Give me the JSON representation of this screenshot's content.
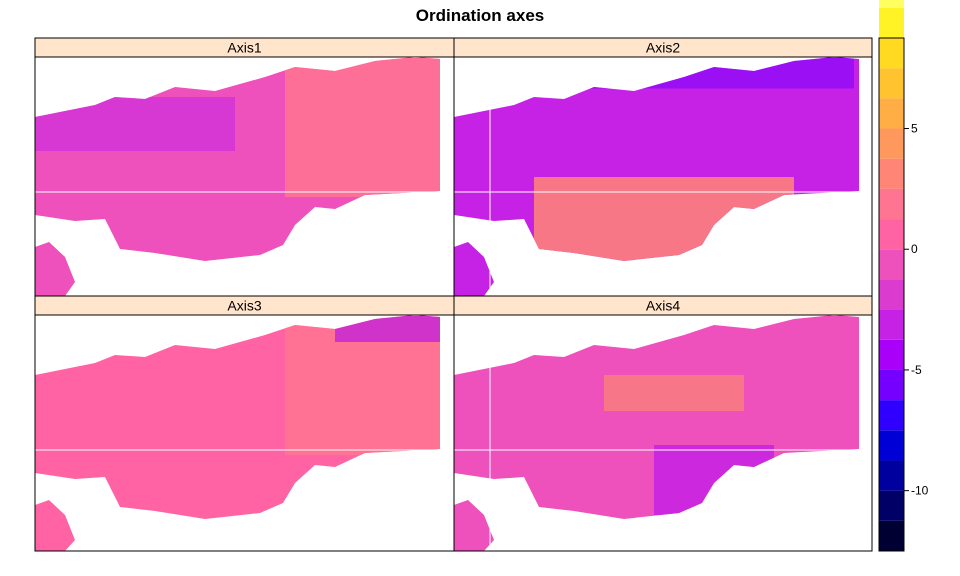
{
  "chart_data": {
    "type": "heatmap",
    "title": "Ordination axes",
    "panels": [
      {
        "name": "Axis1",
        "dominant_value": -0.8,
        "secondary_value": 1.8,
        "low_value": -3.5,
        "low_region": "west",
        "high_region": "east"
      },
      {
        "name": "Axis2",
        "dominant_value": -2.8,
        "secondary_value": 2.5,
        "low_value": -5.5,
        "low_region": "north",
        "high_region": "south"
      },
      {
        "name": "Axis3",
        "dominant_value": 0.8,
        "secondary_value": 2.2,
        "low_value": -4.5,
        "low_region": "edges",
        "high_region": "east"
      },
      {
        "name": "Axis4",
        "dominant_value": -1.2,
        "secondary_value": -2.8,
        "low_value": 4.0,
        "low_region": "center",
        "high_region": "southeast"
      }
    ],
    "colorbar": {
      "min": -12.5,
      "max": 8.75,
      "step": 1.25,
      "ticks": [
        5,
        0,
        -5,
        -10
      ],
      "palette": [
        "#000033",
        "#000066",
        "#00009E",
        "#0000D6",
        "#2F00FF",
        "#7600FF",
        "#A800F8",
        "#C522E5",
        "#DC3BD0",
        "#EE50BC",
        "#FF63A4",
        "#FF7490",
        "#FF8676",
        "#FF985C",
        "#FFAD45",
        "#FFC32F",
        "#FFDA21",
        "#FFF326",
        "#FFFF60"
      ]
    }
  }
}
